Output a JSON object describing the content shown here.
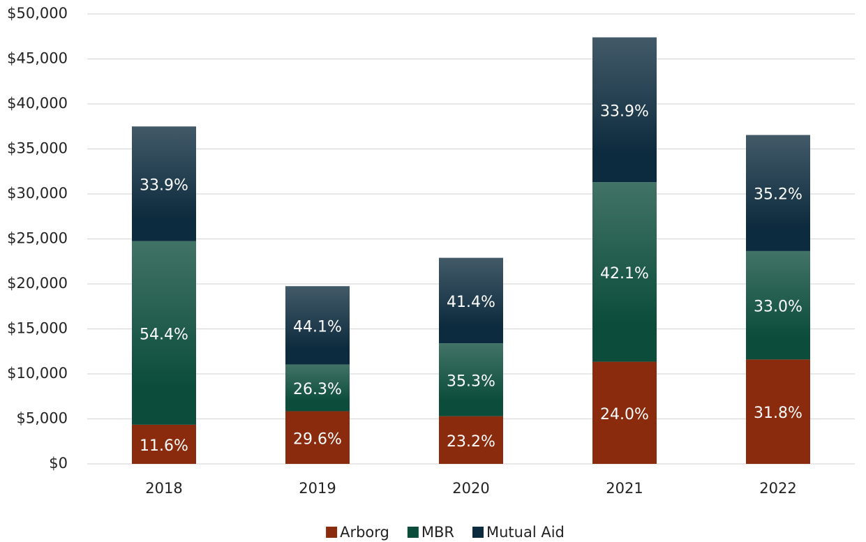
{
  "chart_data": {
    "type": "stacked_bar",
    "categories": [
      "2018",
      "2019",
      "2020",
      "2021",
      "2022"
    ],
    "series": [
      {
        "name": "Arborg",
        "color": "#8a2b0e",
        "values": [
          4350,
          5850,
          5300,
          11350,
          11600
        ],
        "segment_labels": [
          "11.6%",
          "29.6%",
          "23.2%",
          "24.0%",
          "31.8%"
        ]
      },
      {
        "name": "MBR",
        "color": "#0b4c3b",
        "values": [
          20400,
          5200,
          8100,
          19950,
          12050
        ],
        "segment_labels": [
          "54.4%",
          "26.3%",
          "35.3%",
          "42.1%",
          "33.0%"
        ]
      },
      {
        "name": "Mutual Aid",
        "color": "#0d2b3e",
        "values": [
          12750,
          8700,
          9500,
          16100,
          12900
        ],
        "segment_labels": [
          "33.9%",
          "44.1%",
          "41.4%",
          "33.9%",
          "35.2%"
        ]
      }
    ],
    "ylim": [
      0,
      50000
    ],
    "yticks": [
      {
        "value": 0,
        "label": "$0"
      },
      {
        "value": 5000,
        "label": "$5,000"
      },
      {
        "value": 10000,
        "label": "$10,000"
      },
      {
        "value": 15000,
        "label": "$15,000"
      },
      {
        "value": 20000,
        "label": "$20,000"
      },
      {
        "value": 25000,
        "label": "$25,000"
      },
      {
        "value": 30000,
        "label": "$30,000"
      },
      {
        "value": 35000,
        "label": "$35,000"
      },
      {
        "value": 40000,
        "label": "$40,000"
      },
      {
        "value": 45000,
        "label": "$45,000"
      },
      {
        "value": 50000,
        "label": "$50,000"
      }
    ],
    "grid": true,
    "legend": "bottom"
  }
}
